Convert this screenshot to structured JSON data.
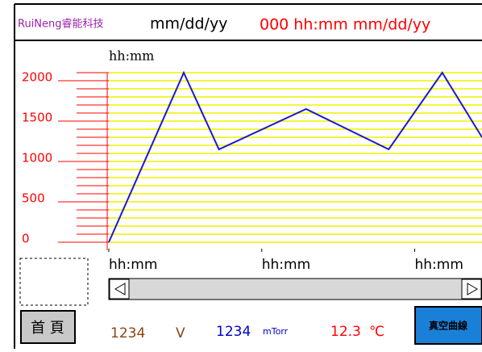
{
  "header": {
    "brand": "RuiNeng睿能科技",
    "date": "mm/dd/yy",
    "status": "000 hh:mm mm/dd/yy"
  },
  "chart_data": {
    "type": "line",
    "title": "hh:mm",
    "x": [
      0,
      0.49,
      0.72,
      1.29,
      1.83,
      2.18,
      2.44
    ],
    "series": [
      {
        "color": "#1a1ad0",
        "values": [
          0,
          2100,
          1150,
          1650,
          1150,
          2100,
          1300
        ]
      }
    ],
    "xlim": [
      0,
      2.44
    ],
    "xticks": [
      {
        "value": 0,
        "label": "hh:mm"
      },
      {
        "value": 1,
        "label": "hh:mm"
      },
      {
        "value": 2,
        "label": "hh:mm"
      }
    ],
    "ylim": [
      0,
      2100
    ],
    "yticks": [
      0,
      500,
      1000,
      1500,
      2000
    ],
    "grid": true,
    "grid_color": "#f0f000",
    "axis_color": "#ff0000"
  },
  "footer": {
    "button_home": "首 頁",
    "voltage": "1234",
    "voltage_unit": "V",
    "pressure": "1234",
    "pressure_unit": "mTorr",
    "temperature": "12.3",
    "temperature_unit": "℃",
    "button_curve": "真空曲線"
  }
}
